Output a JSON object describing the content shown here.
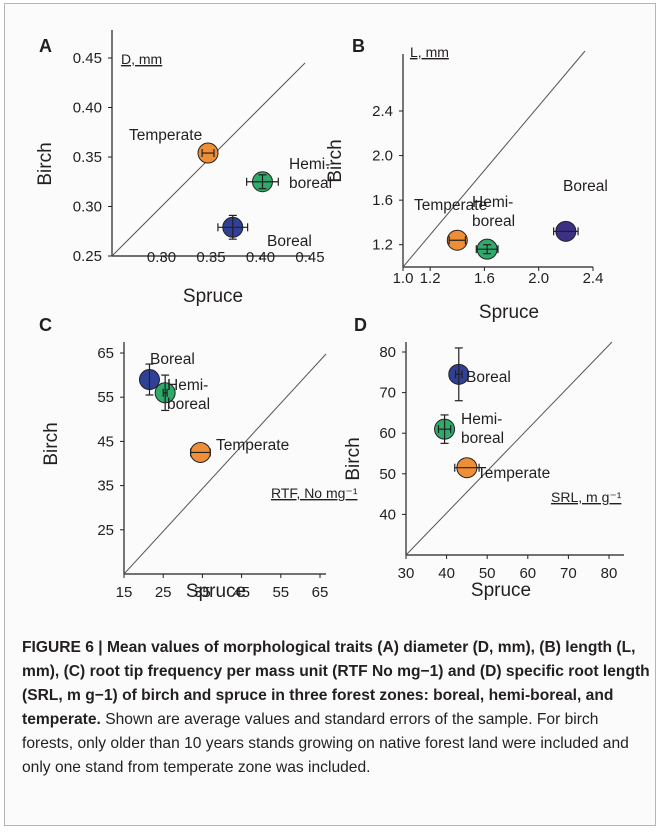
{
  "figure": {
    "caption_bold": "FIGURE 6 | Mean values of morphological traits (A) diameter (D, mm), (B) length (L, mm), (C) root tip frequency per mass unit (RTF No mg−1) and (D) specific root length (SRL, m g−1) of birch and spruce in three forest zones: boreal, hemi-boreal, and temperate.",
    "caption_rest": " Shown are average values and standard errors of the sample. For birch forests, only older than 10 years stands growing on native forest land were included and only one stand from temperate zone was included."
  },
  "colors": {
    "boreal": "#2f4197",
    "hemi_boreal": "#2eaa6a",
    "temperate": "#ee8f37",
    "boreal_B": "#3b2f86"
  },
  "chart_data": [
    {
      "type": "scatter",
      "panel_letter": "A",
      "trait_label": "D, mm",
      "xlabel": "Spruce",
      "ylabel": "Birch",
      "xlim": [
        0.25,
        0.45
      ],
      "ylim": [
        0.25,
        0.45
      ],
      "x_ticks": [
        "0.30",
        "0.35",
        "0.40",
        "0.45"
      ],
      "y_ticks": [
        "0.25",
        "0.30",
        "0.35",
        "0.40",
        "0.45"
      ],
      "points": [
        {
          "name": "Temperate",
          "x": 0.347,
          "y": 0.354,
          "xerr": 0.006,
          "yerr": 0.0,
          "color": "temperate"
        },
        {
          "name": "Hemi-\nboreal",
          "x": 0.402,
          "y": 0.325,
          "xerr": 0.016,
          "yerr": 0.007,
          "color": "hemi_boreal"
        },
        {
          "name": "Boreal",
          "x": 0.372,
          "y": 0.279,
          "xerr": 0.015,
          "yerr": 0.012,
          "color": "boreal"
        }
      ]
    },
    {
      "type": "scatter",
      "panel_letter": "B",
      "trait_label": "L, mm",
      "xlabel": "Spruce",
      "ylabel": "Birch",
      "xlim": [
        1.0,
        2.4
      ],
      "ylim": [
        1.0,
        2.4
      ],
      "x_ticks": [
        "1.0",
        "1.2",
        "1.6",
        "2.0",
        "2.4"
      ],
      "y_ticks": [
        "1.2",
        "1.6",
        "2.0",
        "2.4"
      ],
      "points": [
        {
          "name": "Temperate",
          "x": 1.4,
          "y": 1.24,
          "xerr": 0.06,
          "yerr": 0.0,
          "color": "temperate"
        },
        {
          "name": "Hemi-\nboreal",
          "x": 1.62,
          "y": 1.16,
          "xerr": 0.08,
          "yerr": 0.04,
          "color": "hemi_boreal"
        },
        {
          "name": "Boreal",
          "x": 2.2,
          "y": 1.32,
          "xerr": 0.09,
          "yerr": 0.0,
          "color": "boreal_B"
        }
      ]
    },
    {
      "type": "scatter",
      "panel_letter": "C",
      "trait_label": "RTF, No mg⁻¹",
      "xlabel": "Spruce",
      "ylabel": "Birch",
      "xlim": [
        15,
        65
      ],
      "ylim": [
        15,
        65
      ],
      "x_ticks": [
        "15",
        "25",
        "35",
        "45",
        "55",
        "65"
      ],
      "y_ticks": [
        "25",
        "35",
        "45",
        "55",
        "65"
      ],
      "points": [
        {
          "name": "Boreal",
          "x": 21.5,
          "y": 59,
          "xerr": 0.0,
          "yerr": 3.5,
          "color": "boreal"
        },
        {
          "name": "Hemi-\nboreal",
          "x": 25.5,
          "y": 56,
          "xerr": 0.5,
          "yerr": 4.0,
          "color": "hemi_boreal"
        },
        {
          "name": "Temperate",
          "x": 34.5,
          "y": 42.5,
          "xerr": 2.5,
          "yerr": 0.0,
          "color": "temperate"
        }
      ]
    },
    {
      "type": "scatter",
      "panel_letter": "D",
      "trait_label": "SRL, m g⁻¹",
      "xlabel": "Spruce",
      "ylabel": "Birch",
      "xlim": [
        30,
        80
      ],
      "ylim": [
        30,
        80
      ],
      "x_ticks": [
        "30",
        "40",
        "50",
        "60",
        "70",
        "80"
      ],
      "y_ticks": [
        "40",
        "50",
        "60",
        "70",
        "80"
      ],
      "points": [
        {
          "name": "Boreal",
          "x": 43,
          "y": 74.5,
          "xerr": 0.8,
          "yerr": 6.5,
          "color": "boreal"
        },
        {
          "name": "Hemi-\nboreal",
          "x": 39.5,
          "y": 61,
          "xerr": 1.5,
          "yerr": 3.5,
          "color": "hemi_boreal"
        },
        {
          "name": "Temperate",
          "x": 45,
          "y": 51.5,
          "xerr": 3.0,
          "yerr": 0.0,
          "color": "temperate"
        }
      ]
    }
  ]
}
